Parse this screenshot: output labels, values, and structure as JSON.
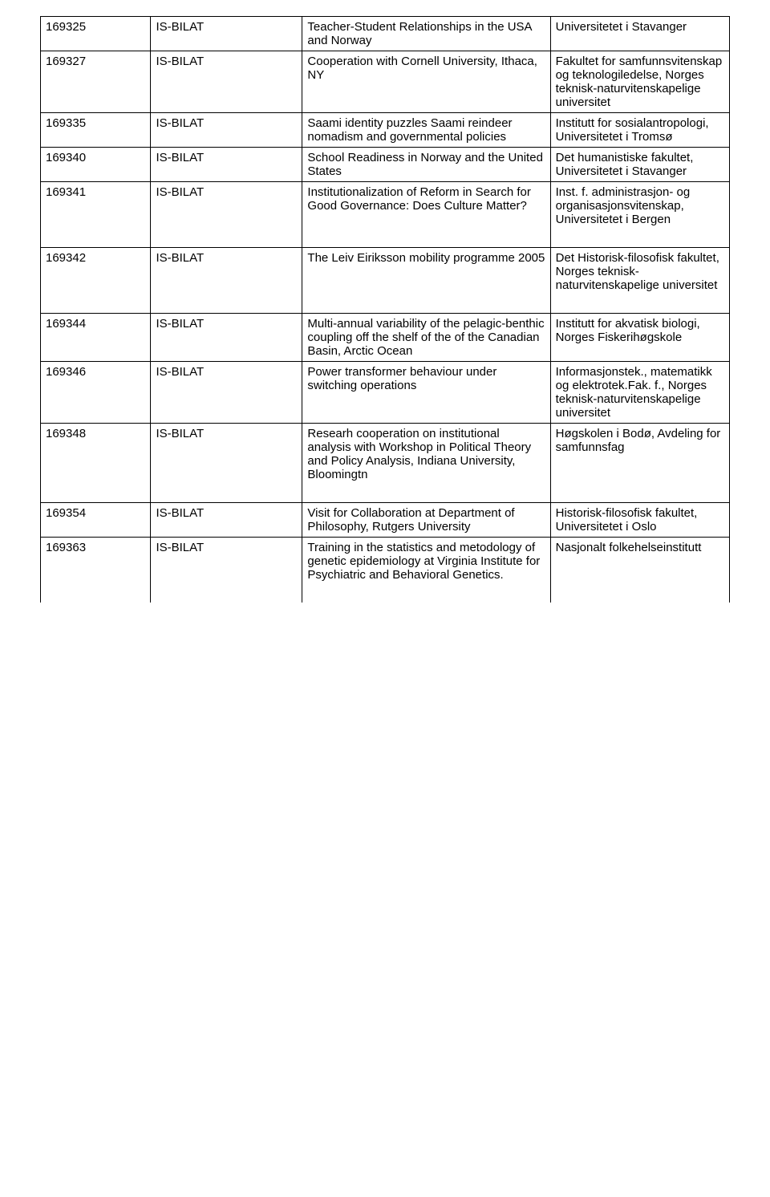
{
  "table": {
    "columns": [
      "id",
      "program",
      "title",
      "institution"
    ],
    "column_widths_pct": [
      16,
      22,
      36,
      26
    ],
    "border_color": "#000000",
    "background_color": "#ffffff",
    "font_family": "Arial",
    "font_size_pt": 11,
    "rows": [
      {
        "id": "169325",
        "program": "IS-BILAT",
        "title": "Teacher-Student Relationships in the USA and Norway",
        "institution": "Universitetet i Stavanger"
      },
      {
        "id": "169327",
        "program": "IS-BILAT",
        "title": "Cooperation with Cornell University, Ithaca, NY",
        "institution": "Fakultet for samfunnsvitenskap og teknologiledelse, Norges teknisk-naturvitenskapelige universitet"
      },
      {
        "id": "169335",
        "program": "IS-BILAT",
        "title": "Saami identity puzzles Saami reindeer nomadism and governmental policies",
        "institution": "Institutt for sosialantropologi, Universitetet i Tromsø"
      },
      {
        "id": "169340",
        "program": "IS-BILAT",
        "title": "School Readiness in Norway and the United States",
        "institution": "Det humanistiske fakultet, Universitetet i Stavanger"
      },
      {
        "id": "169341",
        "program": "IS-BILAT",
        "title": "Institutionalization of Reform in Search for Good Governance: Does Culture Matter?",
        "institution": "Inst. f. administrasjon- og organisasjonsvitenskap, Universitetet i Bergen",
        "extra_bottom_space": true
      },
      {
        "id": "169342",
        "program": "IS-BILAT",
        "title": "The Leiv Eiriksson mobility programme 2005",
        "institution": "Det Historisk-filosofisk fakultet, Norges teknisk-naturvitenskapelige universitet",
        "extra_bottom_space": true
      },
      {
        "id": "169344",
        "program": "IS-BILAT",
        "title": "Multi-annual variability of the pelagic-benthic coupling off the shelf of the of the Canadian Basin, Arctic Ocean",
        "institution": "Institutt for akvatisk biologi, Norges Fiskerihøgskole"
      },
      {
        "id": "169346",
        "program": "IS-BILAT",
        "title": "Power transformer behaviour under switching operations",
        "institution": "Informasjonstek., matematikk og elektrotek.Fak. f., Norges teknisk-naturvitenskapelige universitet"
      },
      {
        "id": "169348",
        "program": "IS-BILAT",
        "title": "Researh cooperation on institutional analysis with Workshop in Political Theory and Policy Analysis, Indiana University, Bloomingtn",
        "institution": "Høgskolen i Bodø, Avdeling for samfunnsfag",
        "extra_bottom_space": true
      },
      {
        "id": "169354",
        "program": "IS-BILAT",
        "title": "Visit for Collaboration at Department of Philosophy, Rutgers University",
        "institution": "Historisk-filosofisk fakultet, Universitetet i Oslo"
      },
      {
        "id": "169363",
        "program": "IS-BILAT",
        "title": "Training in the statistics and metodology of genetic epidemiology at Virginia Institute for Psychiatric and Behavioral Genetics.",
        "institution": "Nasjonalt folkehelseinstitutt",
        "extra_bottom_space": true
      }
    ]
  }
}
